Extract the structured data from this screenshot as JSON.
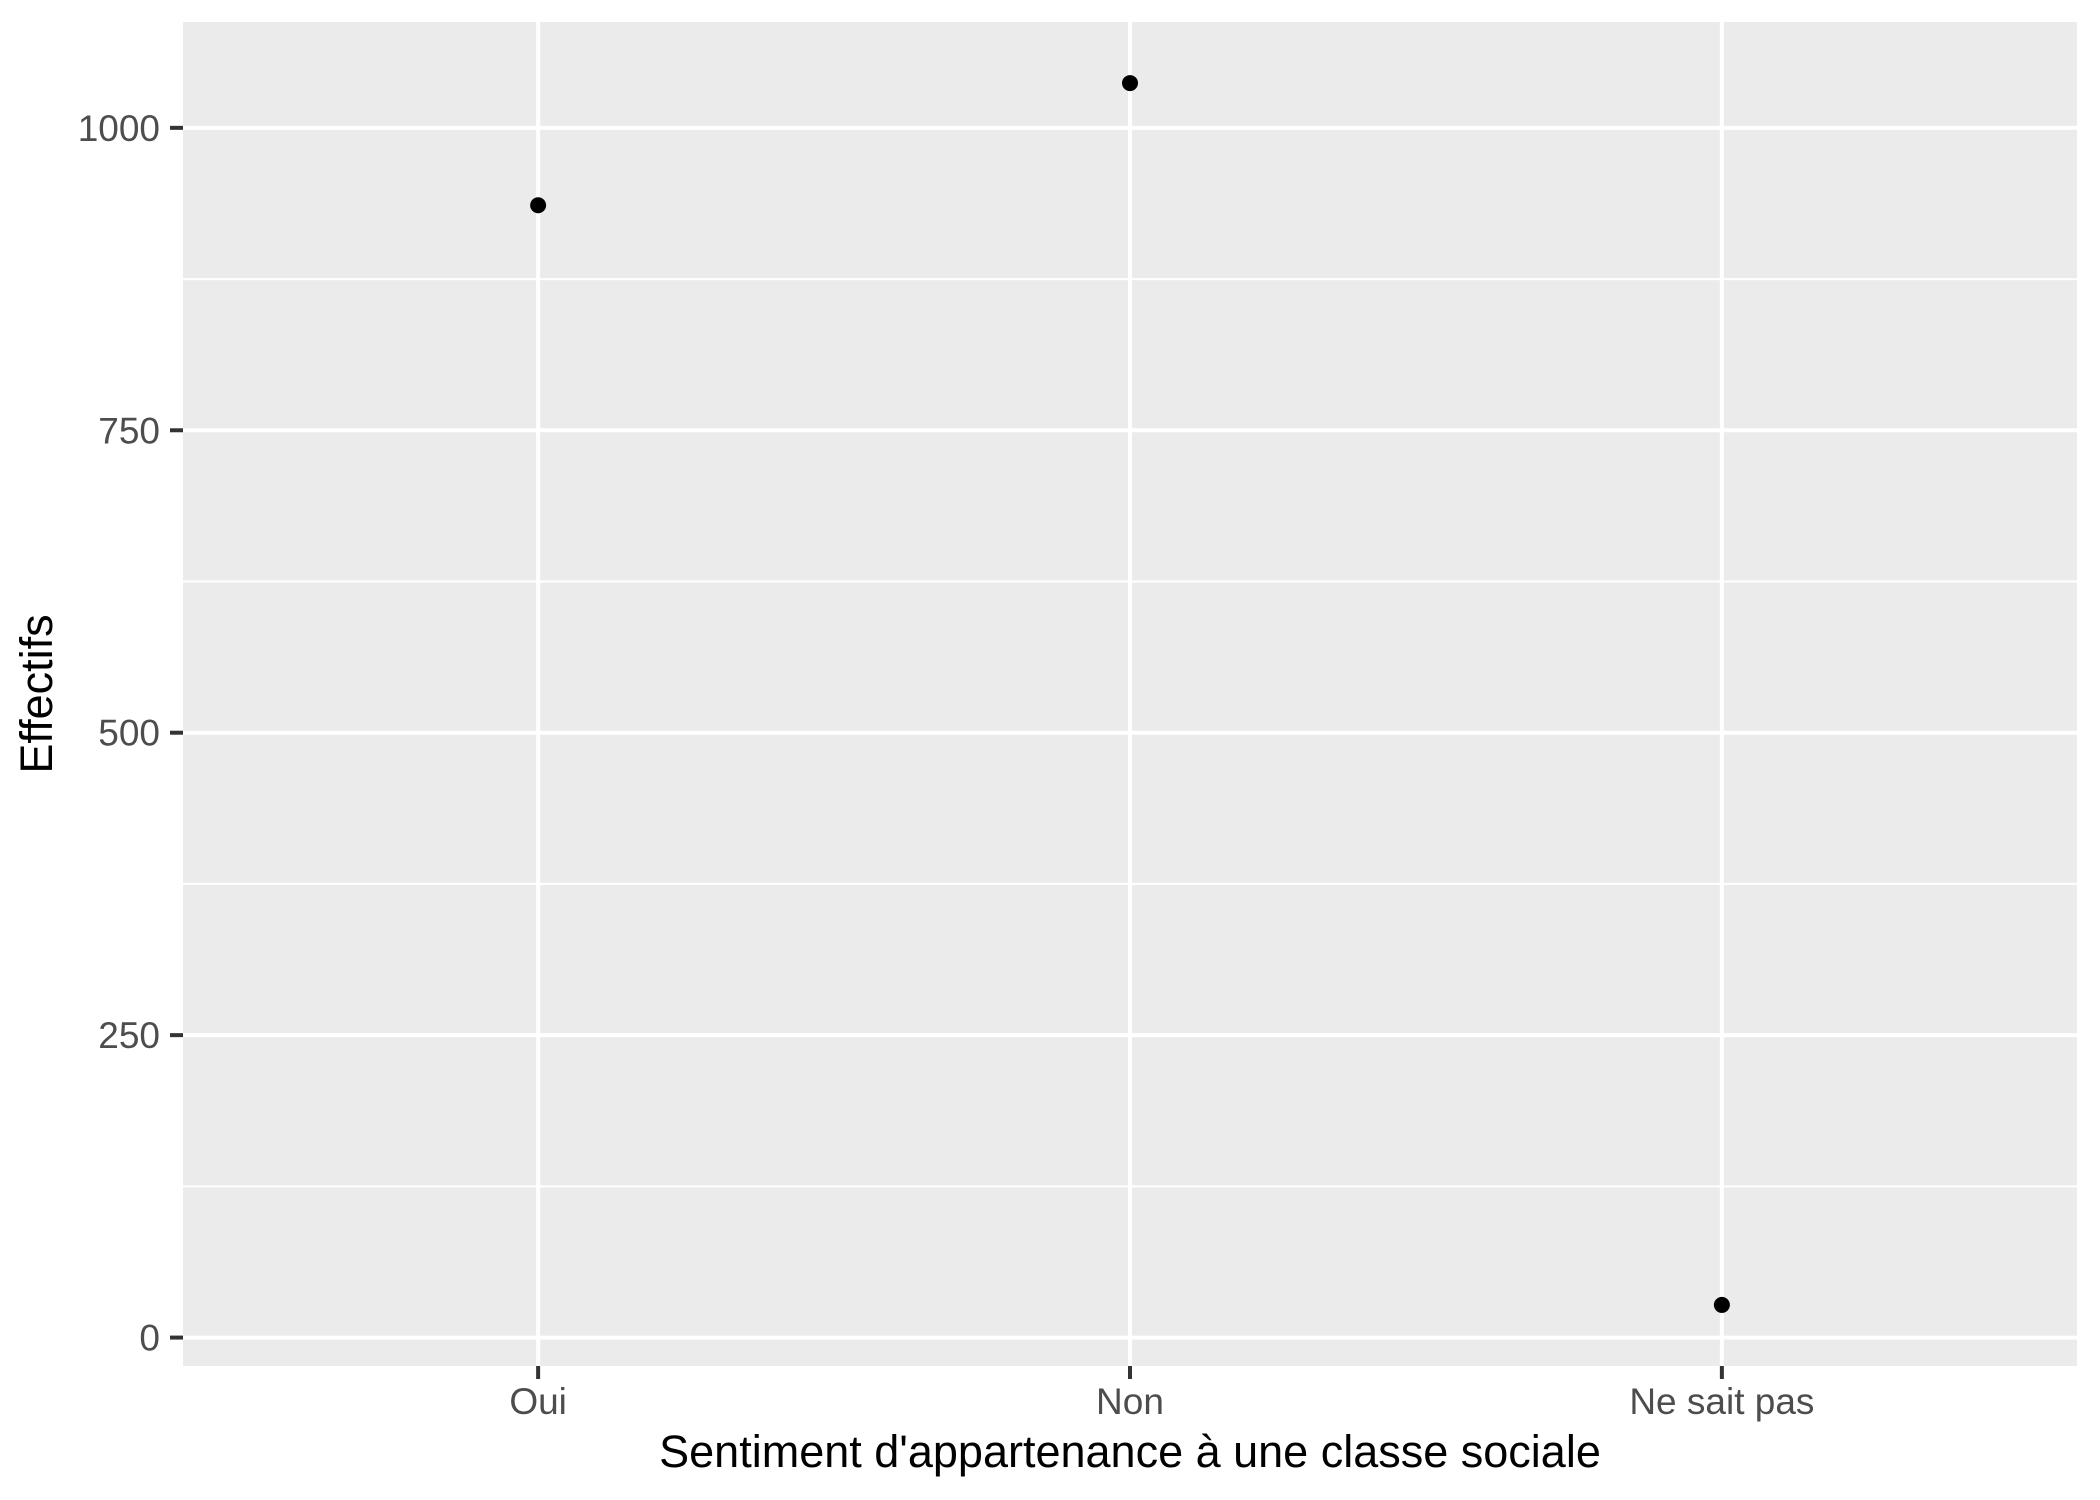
{
  "chart_data": {
    "type": "scatter",
    "title": "",
    "xlabel": "Sentiment d'appartenance à une classe sociale",
    "ylabel": "Effectifs",
    "categories": [
      "Oui",
      "Non",
      "Ne sait pas"
    ],
    "values": [
      936,
      1037,
      27
    ],
    "y_ticks": [
      0,
      250,
      500,
      750,
      1000
    ],
    "y_tick_labels": [
      "0",
      "250",
      "500",
      "750",
      "1000"
    ],
    "ylim": [
      -23.5,
      1087.5
    ],
    "legend": "none",
    "grid": "horizontal major+minor white lines, vertical major white line per category",
    "theme": "ggplot2-grey",
    "colors": {
      "panel_background": "#EBEBEB",
      "gridline": "#FFFFFF",
      "tick_mark": "#333333",
      "tick_label": "#4D4D4D",
      "axis_title": "#000000",
      "point": "#000000",
      "figure_background": "#FFFFFF"
    }
  }
}
